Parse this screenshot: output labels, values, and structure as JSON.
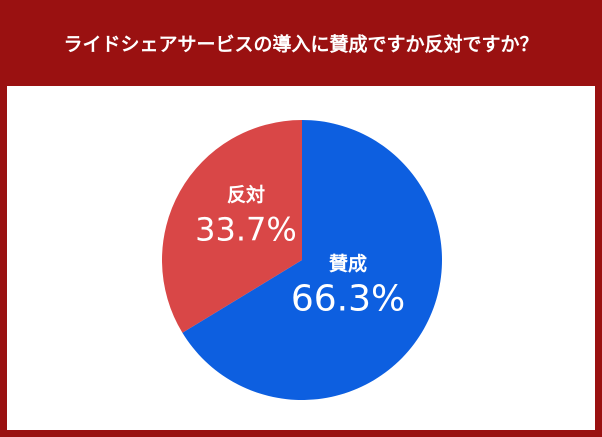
{
  "chart_data": {
    "type": "pie",
    "title": "ライドシェアサービスの導入に賛成ですか反対ですか？",
    "categories": [
      "賛成",
      "反対"
    ],
    "values": [
      66.3,
      33.7
    ],
    "value_labels": [
      "66.3%",
      "33.7%"
    ],
    "colors": [
      "#0d5fe0",
      "#d94747"
    ]
  }
}
